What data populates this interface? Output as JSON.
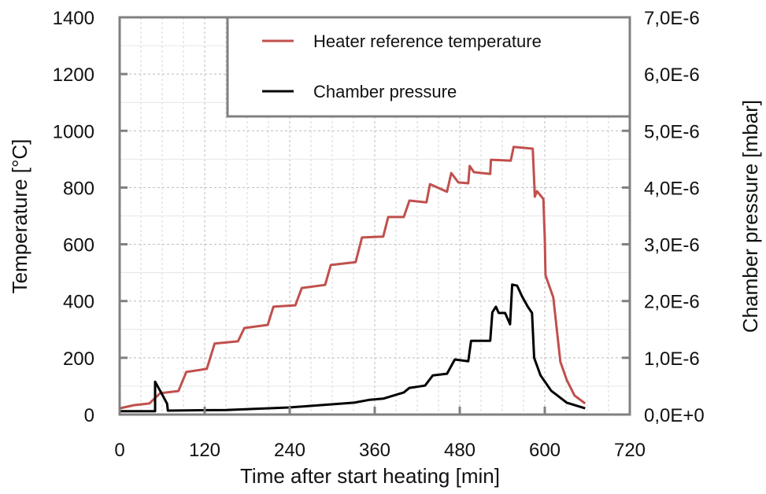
{
  "chart_data": {
    "type": "line",
    "title": "",
    "xlabel": "Time after start heating [min]",
    "ylabel": "Temperature [°C]",
    "y2label": "Chamber pressure [mbar]",
    "xlim": [
      0,
      720
    ],
    "ylim": [
      0,
      1400
    ],
    "y2lim": [
      0,
      7e-06
    ],
    "grid": true,
    "legend_placement": "top-right",
    "x_ticks": [
      "0",
      "120",
      "240",
      "360",
      "480",
      "600",
      "720"
    ],
    "y_ticks": [
      "0",
      "200",
      "400",
      "600",
      "800",
      "1000",
      "1200",
      "1400"
    ],
    "y2_ticks": [
      "0,0E+0",
      "1,0E-6",
      "2,0E-6",
      "3,0E-6",
      "4,0E-6",
      "5,0E-6",
      "6,0E-6",
      "7,0E-6"
    ],
    "series": [
      {
        "name": "Heater reference temperature",
        "axis": "left",
        "color": "#c0504d",
        "points": [
          [
            0,
            22
          ],
          [
            20,
            33
          ],
          [
            42,
            39
          ],
          [
            57,
            75
          ],
          [
            83,
            83
          ],
          [
            94,
            150
          ],
          [
            123,
            161
          ],
          [
            134,
            250
          ],
          [
            167,
            258
          ],
          [
            176,
            305
          ],
          [
            209,
            316
          ],
          [
            217,
            380
          ],
          [
            248,
            385
          ],
          [
            257,
            446
          ],
          [
            290,
            457
          ],
          [
            298,
            527
          ],
          [
            333,
            537
          ],
          [
            342,
            624
          ],
          [
            372,
            627
          ],
          [
            379,
            696
          ],
          [
            401,
            696
          ],
          [
            409,
            754
          ],
          [
            433,
            748
          ],
          [
            438,
            812
          ],
          [
            462,
            785
          ],
          [
            468,
            851
          ],
          [
            478,
            818
          ],
          [
            492,
            815
          ],
          [
            494,
            876
          ],
          [
            500,
            854
          ],
          [
            523,
            848
          ],
          [
            524,
            898
          ],
          [
            552,
            895
          ],
          [
            556,
            943
          ],
          [
            583,
            937
          ],
          [
            586,
            768
          ],
          [
            589,
            787
          ],
          [
            598,
            760
          ],
          [
            600,
            621
          ],
          [
            601,
            491
          ],
          [
            612,
            413
          ],
          [
            622,
            186
          ],
          [
            631,
            122
          ],
          [
            642,
            67
          ],
          [
            657,
            39
          ]
        ]
      },
      {
        "name": "Chamber pressure",
        "axis": "right",
        "color": "#000000",
        "points": [
          [
            0,
            6e-08
          ],
          [
            50,
            6e-08
          ],
          [
            50,
            5.8e-07
          ],
          [
            61,
            3.3e-07
          ],
          [
            67,
            1.9e-07
          ],
          [
            68,
            7e-08
          ],
          [
            150,
            8e-08
          ],
          [
            239,
            1.25e-07
          ],
          [
            331,
            2.1e-07
          ],
          [
            353,
            2.6e-07
          ],
          [
            372,
            2.8e-07
          ],
          [
            401,
            3.9e-07
          ],
          [
            409,
            4.7e-07
          ],
          [
            431,
            5.1e-07
          ],
          [
            442,
            6.9e-07
          ],
          [
            462,
            7.2e-07
          ],
          [
            473,
            9.7e-07
          ],
          [
            492,
            9.4e-07
          ],
          [
            496,
            1.3e-06
          ],
          [
            523,
            1.3e-06
          ],
          [
            526,
            1.8e-06
          ],
          [
            531,
            1.9e-06
          ],
          [
            535,
            1.79e-06
          ],
          [
            544,
            1.79e-06
          ],
          [
            551,
            1.59e-06
          ],
          [
            554,
            2.29e-06
          ],
          [
            561,
            2.27e-06
          ],
          [
            568,
            2.08e-06
          ],
          [
            576,
            1.9e-06
          ],
          [
            582,
            1.79e-06
          ],
          [
            585,
            1e-06
          ],
          [
            594,
            6.9e-07
          ],
          [
            609,
            4.2e-07
          ],
          [
            631,
            2.1e-07
          ],
          [
            657,
            1.1e-07
          ]
        ]
      }
    ]
  }
}
